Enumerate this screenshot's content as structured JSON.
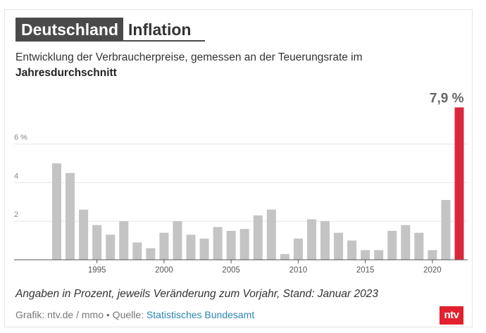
{
  "header": {
    "title_main": "Deutschland",
    "title_sub": "Inflation",
    "subtitle_line1": "Entwicklung der Verbraucherpreise, gemessen an der Teuerungsrate im",
    "subtitle_line2": "Jahresdurchschnitt"
  },
  "chart_data": {
    "type": "bar",
    "x": [
      1992,
      1993,
      1994,
      1995,
      1996,
      1997,
      1998,
      1999,
      2000,
      2001,
      2002,
      2003,
      2004,
      2005,
      2006,
      2007,
      2008,
      2009,
      2010,
      2011,
      2012,
      2013,
      2014,
      2015,
      2016,
      2017,
      2018,
      2019,
      2020,
      2021,
      2022
    ],
    "values": [
      5.0,
      4.5,
      2.6,
      1.8,
      1.3,
      2.0,
      0.9,
      0.6,
      1.4,
      2.0,
      1.3,
      1.1,
      1.7,
      1.5,
      1.6,
      2.3,
      2.6,
      0.3,
      1.1,
      2.1,
      2.0,
      1.4,
      1.0,
      0.5,
      0.5,
      1.5,
      1.8,
      1.4,
      0.5,
      3.1,
      7.9
    ],
    "xticks": [
      "1995",
      "2000",
      "2005",
      "2010",
      "2015",
      "2020"
    ],
    "yticks": [
      "2",
      "4",
      "6 %"
    ],
    "ylim": [
      0,
      8
    ],
    "highlight_label": "7,9 %",
    "colors": {
      "bar": "#c4c4c4",
      "highlight": "#d9283d",
      "grid": "#e6e6e6",
      "axis": "#555555"
    }
  },
  "footer": {
    "note": "Angaben in Prozent, jeweils Veränderung zum Vorjahr, Stand: Januar 2023",
    "source_prefix": "Grafik: ntv.de / mmo • Quelle: ",
    "source_link": "Statistisches Bundesamt",
    "logo": "ntv"
  }
}
